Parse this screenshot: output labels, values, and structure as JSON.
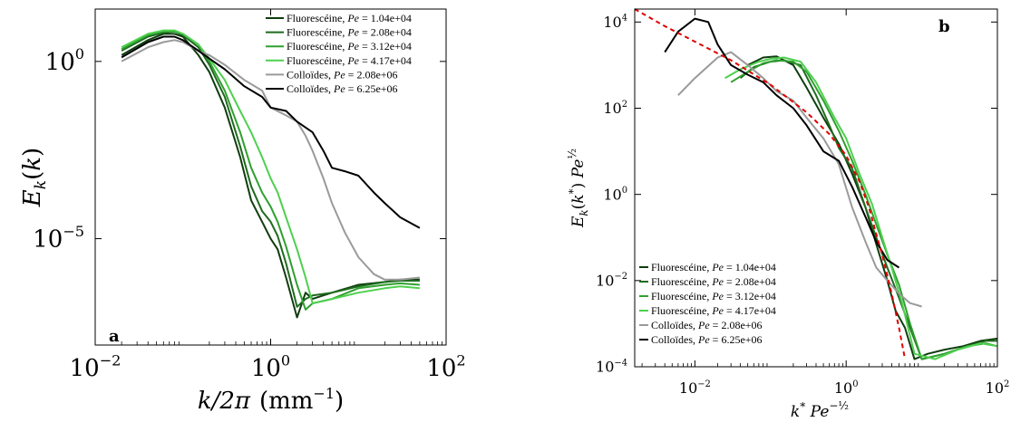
{
  "chart_data": [
    {
      "type": "line",
      "panel_label": "a",
      "xlabel": "k/2π (mm⁻¹)",
      "ylabel": "E_k(k)",
      "xscale": "log",
      "yscale": "log",
      "xlim": [
        0.01,
        100
      ],
      "ylim": [
        1e-08,
        30
      ],
      "xtick_labels": [
        {
          "value": 0.01,
          "base": "10",
          "exp": "−2"
        },
        {
          "value": 1,
          "base": "10",
          "exp": "0"
        },
        {
          "value": 100,
          "base": "10",
          "exp": "2"
        }
      ],
      "ytick_labels": [
        {
          "value": 1e-05,
          "base": "10",
          "exp": "−5"
        },
        {
          "value": 1,
          "base": "10",
          "exp": "0"
        }
      ],
      "grid": false,
      "legend_position": "top-right",
      "series": [
        {
          "name": "Fluorescéine, Pe = 1.04e+04",
          "legend_main": "Fluorescéine, ",
          "legend_pe": "= 1.04e+04",
          "color": "#0f3d0f",
          "x": [
            0.02,
            0.04,
            0.06,
            0.08,
            0.1,
            0.15,
            0.2,
            0.3,
            0.45,
            0.6,
            0.8,
            1.0,
            1.2,
            1.5,
            2.0,
            2.5,
            3.0,
            5,
            10,
            20,
            30,
            50
          ],
          "y": [
            1.5,
            4,
            6,
            6,
            5,
            1.5,
            0.5,
            0.05,
            0.002,
            0.00012,
            3e-05,
            1e-05,
            5e-06,
            8e-07,
            6e-08,
            3e-07,
            2e-07,
            3e-07,
            5e-07,
            6e-07,
            7e-07,
            7e-07
          ]
        },
        {
          "name": "Fluorescéine, Pe = 2.08e+04",
          "legend_main": "Fluorescéine, ",
          "legend_pe": "= 2.08e+04",
          "color": "#1e6b1e",
          "x": [
            0.02,
            0.04,
            0.06,
            0.08,
            0.1,
            0.15,
            0.2,
            0.3,
            0.45,
            0.6,
            0.8,
            1.0,
            1.2,
            1.5,
            2.0,
            2.5,
            3.0,
            5,
            10,
            20,
            30,
            50
          ],
          "y": [
            2,
            5,
            6.5,
            7,
            5.5,
            2.5,
            0.8,
            0.1,
            0.004,
            0.0003,
            6e-05,
            3e-05,
            1.2e-05,
            2e-06,
            1.2e-07,
            2e-07,
            2.5e-07,
            3e-07,
            4.5e-07,
            6e-07,
            6.5e-07,
            6.5e-07
          ]
        },
        {
          "name": "Fluorescéine, Pe = 3.12e+04",
          "legend_main": "Fluorescéine, ",
          "legend_pe": "= 3.12e+04",
          "color": "#2fa02f",
          "x": [
            0.02,
            0.04,
            0.06,
            0.08,
            0.1,
            0.15,
            0.2,
            0.3,
            0.45,
            0.6,
            0.8,
            1.0,
            1.2,
            1.5,
            2.0,
            2.5,
            3.0,
            5,
            10,
            20,
            30,
            50
          ],
          "y": [
            2.2,
            5.5,
            7,
            7,
            6,
            3,
            1,
            0.15,
            0.01,
            0.001,
            0.0002,
            8e-05,
            3e-05,
            6e-06,
            5e-07,
            1e-07,
            1.5e-07,
            2e-07,
            4e-07,
            5e-07,
            5.5e-07,
            5e-07
          ]
        },
        {
          "name": "Fluorescéine, Pe = 4.17e+04",
          "legend_main": "Fluorescéine, ",
          "legend_pe": "= 4.17e+04",
          "color": "#4ed04e",
          "x": [
            0.02,
            0.04,
            0.06,
            0.08,
            0.1,
            0.15,
            0.2,
            0.3,
            0.45,
            0.6,
            0.8,
            1.0,
            1.2,
            1.5,
            2.0,
            2.5,
            3.0,
            5,
            10,
            20,
            30,
            50
          ],
          "y": [
            2.5,
            6,
            7.5,
            7.5,
            6,
            3,
            1.2,
            0.3,
            0.04,
            0.01,
            0.002,
            0.0005,
            0.0002,
            4e-05,
            5e-06,
            8e-07,
            1.5e-07,
            2e-07,
            3e-07,
            4e-07,
            4.5e-07,
            4e-07
          ]
        },
        {
          "name": "Colloïdes, Pe = 2.08e+06",
          "legend_main": "Colloïdes, ",
          "legend_pe": "= 2.08e+06",
          "color": "#9a9a9a",
          "x": [
            0.02,
            0.04,
            0.06,
            0.08,
            0.1,
            0.15,
            0.2,
            0.3,
            0.5,
            0.8,
            1.0,
            1.5,
            2.0,
            2.5,
            3.0,
            4.0,
            5.0,
            7.0,
            10,
            15,
            20,
            30,
            50
          ],
          "y": [
            1.0,
            2.5,
            3.5,
            4,
            3.5,
            2,
            1.5,
            0.8,
            0.3,
            0.15,
            0.05,
            0.03,
            0.02,
            0.008,
            0.003,
            0.0005,
            0.0001,
            1.5e-05,
            3e-06,
            1e-06,
            7e-07,
            7e-07,
            8e-07
          ]
        },
        {
          "name": "Colloïdes, Pe = 6.25e+06",
          "legend_main": "Colloïdes, ",
          "legend_pe": "= 6.25e+06",
          "color": "#000000",
          "x": [
            0.02,
            0.04,
            0.06,
            0.08,
            0.1,
            0.15,
            0.2,
            0.3,
            0.5,
            0.8,
            1.0,
            1.5,
            2.0,
            3.0,
            4.0,
            5.0,
            7.0,
            10,
            15,
            20,
            30,
            50
          ],
          "y": [
            1.3,
            3.5,
            5,
            5,
            4,
            2,
            1.2,
            0.6,
            0.2,
            0.1,
            0.05,
            0.04,
            0.02,
            0.01,
            0.003,
            0.001,
            0.0008,
            0.0006,
            0.0002,
            0.0001,
            4e-05,
            2e-05
          ]
        }
      ]
    },
    {
      "type": "line",
      "panel_label": "b",
      "xlabel": "k* Pe^(−1/2)",
      "ylabel": "E_k(k*) Pe^(1/2)",
      "xscale": "log",
      "yscale": "log",
      "xlim": [
        0.0016,
        100
      ],
      "ylim": [
        0.0001,
        20000
      ],
      "xtick_labels": [
        {
          "value": 0.01,
          "base": "10",
          "exp": "−2"
        },
        {
          "value": 1,
          "base": "10",
          "exp": "0"
        },
        {
          "value": 100,
          "base": "10",
          "exp": "2"
        }
      ],
      "ytick_labels": [
        {
          "value": 0.0001,
          "base": "10",
          "exp": "−4"
        },
        {
          "value": 0.01,
          "base": "10",
          "exp": "−2"
        },
        {
          "value": 1,
          "base": "10",
          "exp": "0"
        },
        {
          "value": 100,
          "base": "10",
          "exp": "2"
        },
        {
          "value": 10000,
          "base": "10",
          "exp": "4"
        }
      ],
      "grid": false,
      "legend_position": "bottom-left",
      "series": [
        {
          "name": "Fluorescéine, Pe = 1.04e+04",
          "legend_main": "Fluorescéine, ",
          "legend_pe": "= 1.04e+04",
          "color": "#0f3d0f",
          "x": [
            0.05,
            0.08,
            0.12,
            0.2,
            0.3,
            0.5,
            0.8,
            1.2,
            1.8,
            2.5,
            3.5,
            4.5,
            6,
            8,
            12,
            20,
            35,
            60,
            100
          ],
          "y": [
            1000,
            1500,
            1600,
            1000,
            300,
            60,
            15,
            3,
            0.5,
            0.07,
            0.01,
            0.002,
            0.0008,
            0.00015,
            0.0002,
            0.00025,
            0.0003,
            0.0004,
            0.00045
          ]
        },
        {
          "name": "Fluorescéine, Pe = 2.08e+04",
          "legend_main": "Fluorescéine, ",
          "legend_pe": "= 2.08e+04",
          "color": "#1e6b1e",
          "x": [
            0.04,
            0.06,
            0.1,
            0.15,
            0.25,
            0.4,
            0.6,
            0.8,
            1.2,
            1.8,
            2.5,
            3.5,
            5,
            7,
            10,
            20,
            40,
            70,
            100
          ],
          "y": [
            500,
            900,
            1200,
            1300,
            1000,
            200,
            40,
            12,
            4,
            0.5,
            0.1,
            0.02,
            0.004,
            0.0008,
            0.00015,
            0.0002,
            0.0003,
            0.0004,
            0.0004
          ]
        },
        {
          "name": "Fluorescéine, Pe = 3.12e+04",
          "legend_main": "Fluorescéine, ",
          "legend_pe": "= 3.12e+04",
          "color": "#2fa02f",
          "x": [
            0.03,
            0.05,
            0.08,
            0.12,
            0.2,
            0.3,
            0.5,
            0.8,
            1.2,
            1.8,
            2.5,
            3.5,
            5,
            7,
            10,
            20,
            40,
            70,
            100
          ],
          "y": [
            400,
            700,
            1100,
            1300,
            1200,
            700,
            150,
            30,
            6,
            1,
            0.2,
            0.04,
            0.008,
            0.001,
            0.00015,
            0.0002,
            0.0003,
            0.00035,
            0.0003
          ]
        },
        {
          "name": "Fluorescéine, Pe = 4.17e+04",
          "legend_main": "Fluorescéine, ",
          "legend_pe": "= 4.17e+04",
          "color": "#4ed04e",
          "x": [
            0.025,
            0.04,
            0.07,
            0.1,
            0.15,
            0.25,
            0.4,
            0.7,
            1.0,
            1.5,
            2.2,
            3,
            4,
            5.5,
            8,
            15,
            30,
            60,
            100
          ],
          "y": [
            500,
            800,
            1200,
            1400,
            1500,
            1200,
            400,
            60,
            20,
            3,
            0.6,
            0.1,
            0.02,
            0.003,
            0.0002,
            0.00015,
            0.00025,
            0.00035,
            0.0003
          ]
        },
        {
          "name": "Colloïdes, Pe = 2.08e+06",
          "legend_main": "Colloïdes, ",
          "legend_pe": "= 2.08e+06",
          "color": "#9a9a9a",
          "x": [
            0.006,
            0.01,
            0.02,
            0.03,
            0.05,
            0.08,
            0.12,
            0.2,
            0.3,
            0.5,
            0.8,
            1.2,
            1.8,
            2.5,
            3.5,
            5,
            7,
            10
          ],
          "y": [
            200,
            500,
            1500,
            2000,
            1000,
            500,
            250,
            150,
            60,
            20,
            5,
            0.5,
            0.08,
            0.02,
            0.01,
            0.005,
            0.003,
            0.0025
          ]
        },
        {
          "name": "Colloïdes, Pe = 6.25e+06",
          "legend_main": "Colloïdes, ",
          "legend_pe": "= 6.25e+06",
          "color": "#000000",
          "x": [
            0.004,
            0.006,
            0.01,
            0.015,
            0.02,
            0.03,
            0.05,
            0.08,
            0.12,
            0.2,
            0.3,
            0.5,
            0.8,
            1.2,
            1.8,
            2.5,
            3.5,
            5
          ],
          "y": [
            2000,
            6000,
            12000,
            10000,
            3000,
            1000,
            600,
            400,
            200,
            100,
            40,
            10,
            6,
            1.5,
            0.3,
            0.08,
            0.03,
            0.02
          ]
        },
        {
          "name": "Fit",
          "legend_main": "",
          "legend_pe": "",
          "color": "#e00000",
          "dashed": true,
          "x": [
            0.0016,
            0.004,
            0.01,
            0.03,
            0.1,
            0.3,
            0.6,
            1.0,
            1.5,
            2.0,
            2.5,
            3,
            4,
            5,
            6
          ],
          "y": [
            20000,
            8000,
            3500,
            1300,
            350,
            80,
            25,
            8,
            2,
            0.5,
            0.12,
            0.04,
            0.005,
            0.0008,
            0.00015
          ]
        }
      ]
    }
  ]
}
